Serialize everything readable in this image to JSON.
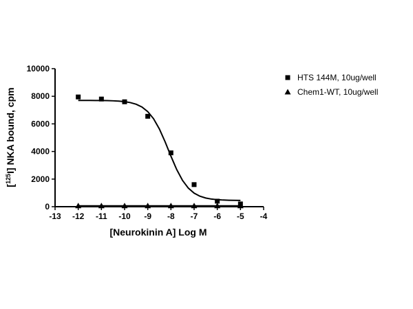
{
  "chart_data": {
    "type": "scatter",
    "xlabel": "[Neurokinin A] Log M",
    "ylabel": {
      "prefix": "[",
      "superscript": "125",
      "suffix": "I] NKA bound, cpm"
    },
    "xlim": [
      -13,
      -4
    ],
    "xticks": [
      -13,
      -12,
      -11,
      -10,
      -9,
      -8,
      -7,
      -6,
      -5,
      -4
    ],
    "ylim": [
      0,
      10000
    ],
    "yticks": [
      0,
      2000,
      4000,
      6000,
      8000,
      10000
    ],
    "x": [
      -12,
      -11,
      -10,
      -9,
      -8,
      -7,
      -6,
      -5
    ],
    "series": [
      {
        "name": "HTS 144M, 10ug/well",
        "color": "#000000",
        "marker": "square",
        "values": [
          7950,
          7800,
          7600,
          6550,
          3900,
          1600,
          400,
          200
        ],
        "curve": {
          "x": [
            -12,
            -11.75,
            -11.5,
            -11.25,
            -11,
            -10.75,
            -10.5,
            -10.25,
            -10,
            -9.75,
            -9.5,
            -9.25,
            -9,
            -8.75,
            -8.5,
            -8.25,
            -8,
            -7.75,
            -7.5,
            -7.25,
            -7,
            -6.75,
            -6.5,
            -6.25,
            -6,
            -5.75,
            -5.5,
            -5.25,
            -5
          ],
          "values": [
            7699,
            7698,
            7697,
            7695,
            7691,
            7684,
            7671,
            7649,
            7610,
            7541,
            7422,
            7220,
            6889,
            6373,
            5636,
            4695,
            3659,
            2688,
            1906,
            1347,
            983,
            760,
            628,
            551,
            507,
            482,
            468,
            460,
            456
          ]
        }
      },
      {
        "name": "Chem1-WT, 10ug/well",
        "color": "#000000",
        "marker": "triangle",
        "values": [
          60,
          60,
          60,
          60,
          60,
          60,
          60,
          60
        ],
        "curve": {
          "x": [
            -12,
            -5
          ],
          "values": [
            60,
            60
          ]
        }
      }
    ]
  }
}
